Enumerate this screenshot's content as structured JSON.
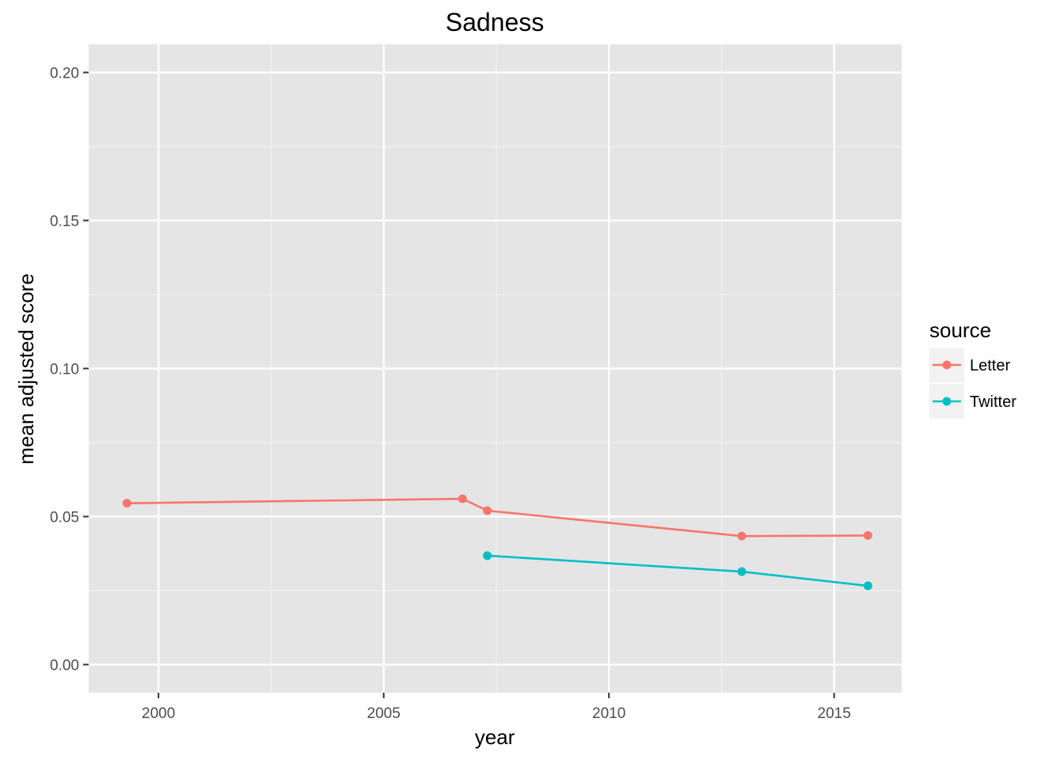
{
  "chart_data": {
    "type": "line",
    "title": "Sadness",
    "xlabel": "year",
    "ylabel": "mean adjusted score",
    "xlim": [
      1998.45,
      2016.5
    ],
    "ylim": [
      -0.0095,
      0.2095
    ],
    "x_ticks": [
      2000,
      2005,
      2010,
      2015
    ],
    "x_tick_labels": [
      "2000",
      "2005",
      "2010",
      "2015"
    ],
    "y_ticks": [
      0.0,
      0.05,
      0.1,
      0.15,
      0.2
    ],
    "y_tick_labels": [
      "0.00",
      "0.05",
      "0.10",
      "0.15",
      "0.20"
    ],
    "grid": true,
    "legend": {
      "title": "source",
      "position": "right"
    },
    "series": [
      {
        "name": "Letter",
        "color": "#F8766D",
        "x": [
          1999.3,
          2006.75,
          2007.3,
          2012.95,
          2015.75
        ],
        "y": [
          0.0545,
          0.056,
          0.052,
          0.0434,
          0.0436
        ]
      },
      {
        "name": "Twitter",
        "color": "#00BFC4",
        "x": [
          2007.3,
          2012.95,
          2015.75
        ],
        "y": [
          0.0368,
          0.0314,
          0.0266
        ]
      }
    ]
  }
}
